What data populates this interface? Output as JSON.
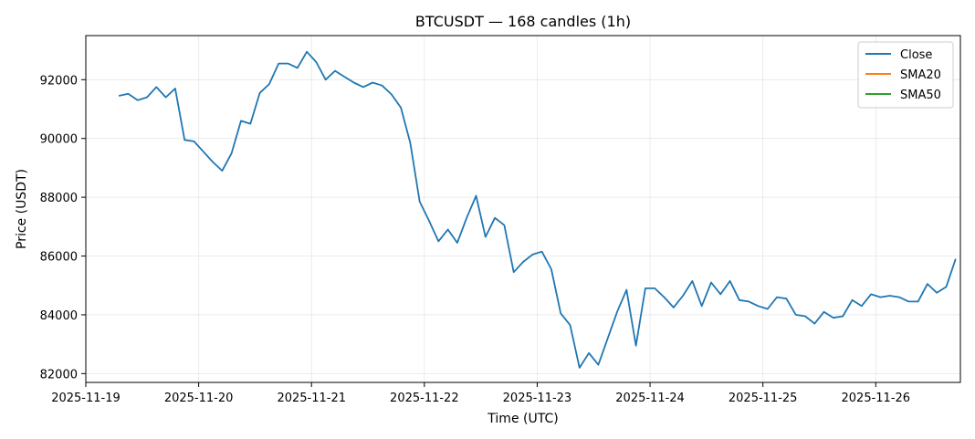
{
  "chart_data": {
    "type": "line",
    "title": "BTCUSDT — 168 candles (1h)",
    "xlabel": "Time (UTC)",
    "ylabel": "Price (USDT)",
    "x_ticks": [
      "2025-11-19",
      "2025-11-20",
      "2025-11-21",
      "2025-11-22",
      "2025-11-23",
      "2025-11-24",
      "2025-11-25",
      "2025-11-26"
    ],
    "y_ticks": [
      82000,
      84000,
      86000,
      88000,
      90000,
      92000
    ],
    "xlim": [
      "2025-11-19 00:00",
      "2025-11-26 18:00"
    ],
    "ylim": [
      81700,
      93500
    ],
    "grid": true,
    "legend_position": "top-right",
    "series": [
      {
        "name": "Close",
        "color": "#1f77b4",
        "points": [
          [
            "2025-11-19 07:00",
            91450
          ],
          [
            "2025-11-19 09:00",
            91520
          ],
          [
            "2025-11-19 11:00",
            91300
          ],
          [
            "2025-11-19 13:00",
            91400
          ],
          [
            "2025-11-19 15:00",
            91750
          ],
          [
            "2025-11-19 17:00",
            91400
          ],
          [
            "2025-11-19 19:00",
            91700
          ],
          [
            "2025-11-19 21:00",
            89950
          ],
          [
            "2025-11-19 23:00",
            89900
          ],
          [
            "2025-11-20 01:00",
            89550
          ],
          [
            "2025-11-20 03:00",
            89200
          ],
          [
            "2025-11-20 05:00",
            88900
          ],
          [
            "2025-11-20 07:00",
            89500
          ],
          [
            "2025-11-20 09:00",
            90600
          ],
          [
            "2025-11-20 11:00",
            90500
          ],
          [
            "2025-11-20 13:00",
            91550
          ],
          [
            "2025-11-20 15:00",
            91850
          ],
          [
            "2025-11-20 17:00",
            92550
          ],
          [
            "2025-11-20 19:00",
            92550
          ],
          [
            "2025-11-20 21:00",
            92400
          ],
          [
            "2025-11-20 23:00",
            92950
          ],
          [
            "2025-11-21 01:00",
            92600
          ],
          [
            "2025-11-21 03:00",
            92000
          ],
          [
            "2025-11-21 05:00",
            92300
          ],
          [
            "2025-11-21 07:00",
            92100
          ],
          [
            "2025-11-21 09:00",
            91900
          ],
          [
            "2025-11-21 11:00",
            91750
          ],
          [
            "2025-11-21 13:00",
            91900
          ],
          [
            "2025-11-21 15:00",
            91800
          ],
          [
            "2025-11-21 17:00",
            91500
          ],
          [
            "2025-11-21 19:00",
            91050
          ],
          [
            "2025-11-21 21:00",
            89850
          ],
          [
            "2025-11-21 23:00",
            87850
          ],
          [
            "2025-11-22 01:00",
            87200
          ],
          [
            "2025-11-22 03:00",
            86500
          ],
          [
            "2025-11-22 05:00",
            86900
          ],
          [
            "2025-11-22 07:00",
            86450
          ],
          [
            "2025-11-22 09:00",
            87300
          ],
          [
            "2025-11-22 11:00",
            88050
          ],
          [
            "2025-11-22 13:00",
            86650
          ],
          [
            "2025-11-22 15:00",
            87300
          ],
          [
            "2025-11-22 17:00",
            87050
          ],
          [
            "2025-11-22 19:00",
            85450
          ],
          [
            "2025-11-22 21:00",
            85800
          ],
          [
            "2025-11-22 23:00",
            86050
          ],
          [
            "2025-11-23 01:00",
            86150
          ],
          [
            "2025-11-23 03:00",
            85550
          ],
          [
            "2025-11-23 05:00",
            84050
          ],
          [
            "2025-11-23 07:00",
            83650
          ],
          [
            "2025-11-23 09:00",
            82200
          ],
          [
            "2025-11-23 11:00",
            82700
          ],
          [
            "2025-11-23 13:00",
            82300
          ],
          [
            "2025-11-23 15:00",
            83200
          ],
          [
            "2025-11-23 17:00",
            84100
          ],
          [
            "2025-11-23 19:00",
            84850
          ],
          [
            "2025-11-23 21:00",
            82950
          ],
          [
            "2025-11-23 23:00",
            84900
          ],
          [
            "2025-11-24 01:00",
            84900
          ],
          [
            "2025-11-24 03:00",
            84600
          ],
          [
            "2025-11-24 05:00",
            84250
          ],
          [
            "2025-11-24 07:00",
            84650
          ],
          [
            "2025-11-24 09:00",
            85150
          ],
          [
            "2025-11-24 11:00",
            84300
          ],
          [
            "2025-11-24 13:00",
            85100
          ],
          [
            "2025-11-24 15:00",
            84700
          ],
          [
            "2025-11-24 17:00",
            85150
          ],
          [
            "2025-11-24 19:00",
            84500
          ],
          [
            "2025-11-24 21:00",
            84450
          ],
          [
            "2025-11-24 23:00",
            84300
          ],
          [
            "2025-11-25 01:00",
            84200
          ],
          [
            "2025-11-25 03:00",
            84600
          ],
          [
            "2025-11-25 05:00",
            84550
          ],
          [
            "2025-11-25 07:00",
            84000
          ],
          [
            "2025-11-25 09:00",
            83950
          ],
          [
            "2025-11-25 11:00",
            83700
          ],
          [
            "2025-11-25 13:00",
            84100
          ],
          [
            "2025-11-25 15:00",
            83900
          ],
          [
            "2025-11-25 17:00",
            83950
          ],
          [
            "2025-11-25 19:00",
            84500
          ],
          [
            "2025-11-25 21:00",
            84300
          ],
          [
            "2025-11-25 23:00",
            84700
          ],
          [
            "2025-11-26 01:00",
            84600
          ],
          [
            "2025-11-26 03:00",
            84650
          ],
          [
            "2025-11-26 05:00",
            84600
          ],
          [
            "2025-11-26 07:00",
            84450
          ],
          [
            "2025-11-26 09:00",
            84450
          ],
          [
            "2025-11-26 11:00",
            85050
          ],
          [
            "2025-11-26 13:00",
            84750
          ],
          [
            "2025-11-26 15:00",
            84950
          ],
          [
            "2025-11-26 17:00",
            85900
          ]
        ]
      },
      {
        "name": "SMA20",
        "color": "#ff7f0e",
        "points": []
      },
      {
        "name": "SMA50",
        "color": "#2ca02c",
        "points": []
      }
    ]
  }
}
